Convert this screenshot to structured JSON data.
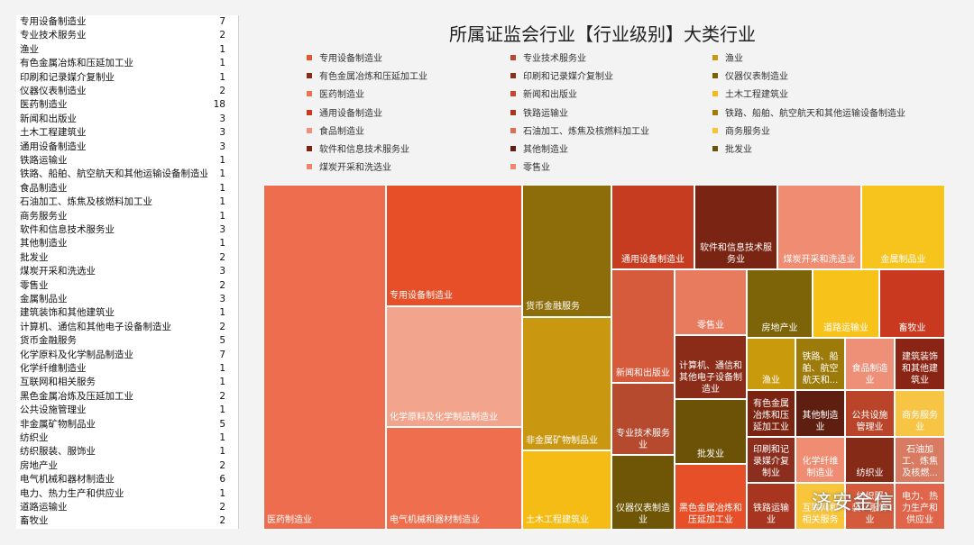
{
  "table": [
    {
      "name": "专用设备制造业",
      "count": "7"
    },
    {
      "name": "专业技术服务业",
      "count": "2"
    },
    {
      "name": "渔业",
      "count": "1"
    },
    {
      "name": "有色金属冶炼和压延加工业",
      "count": "1"
    },
    {
      "name": "印刷和记录媒介复制业",
      "count": "1"
    },
    {
      "name": "仪器仪表制造业",
      "count": "2"
    },
    {
      "name": "医药制造业",
      "count": "18"
    },
    {
      "name": "新闻和出版业",
      "count": "3"
    },
    {
      "name": "土木工程建筑业",
      "count": "3"
    },
    {
      "name": "通用设备制造业",
      "count": "3"
    },
    {
      "name": "铁路运输业",
      "count": "1"
    },
    {
      "name": "铁路、船舶、航空航天和其他运输设备制造业",
      "count": "1"
    },
    {
      "name": "食品制造业",
      "count": "1"
    },
    {
      "name": "石油加工、炼焦及核燃料加工业",
      "count": "1"
    },
    {
      "name": "商务服务业",
      "count": "1"
    },
    {
      "name": "软件和信息技术服务业",
      "count": "3"
    },
    {
      "name": "其他制造业",
      "count": "1"
    },
    {
      "name": "批发业",
      "count": "2"
    },
    {
      "name": "煤炭开采和洗选业",
      "count": "3"
    },
    {
      "name": "零售业",
      "count": "2"
    },
    {
      "name": "金属制品业",
      "count": "3"
    },
    {
      "name": "建筑装饰和其他建筑业",
      "count": "1"
    },
    {
      "name": "计算机、通信和其他电子设备制造业",
      "count": "2"
    },
    {
      "name": "货币金融服务",
      "count": "5"
    },
    {
      "name": "化学原料及化学制品制造业",
      "count": "7"
    },
    {
      "name": "化学纤维制造业",
      "count": "1"
    },
    {
      "name": "互联网和相关服务",
      "count": "1"
    },
    {
      "name": "黑色金属冶炼及压延加工业",
      "count": "2"
    },
    {
      "name": "公共设施管理业",
      "count": "1"
    },
    {
      "name": "非金属矿物制品业",
      "count": "5"
    },
    {
      "name": "纺织业",
      "count": "1"
    },
    {
      "name": "纺织服装、服饰业",
      "count": "1"
    },
    {
      "name": "房地产业",
      "count": "2"
    },
    {
      "name": "电气机械和器材制造业",
      "count": "6"
    },
    {
      "name": "电力、热力生产和供应业",
      "count": "1"
    },
    {
      "name": "道路运输业",
      "count": "2"
    },
    {
      "name": "畜牧业",
      "count": "2"
    }
  ],
  "watermark": "济安金信",
  "chart_data": {
    "type": "treemap",
    "title": "所属证监会行业【行业级别】大类行业",
    "legend": [
      {
        "name": "专用设备制造业",
        "color": "#e8542e"
      },
      {
        "name": "专业技术服务业",
        "color": "#b8482e"
      },
      {
        "name": "渔业",
        "color": "#c99a0c"
      },
      {
        "name": "有色金属冶炼和压延加工业",
        "color": "#8b2a1a"
      },
      {
        "name": "印刷和记录媒介复制业",
        "color": "#8c2e1e"
      },
      {
        "name": "仪器仪表制造业",
        "color": "#7a6204"
      },
      {
        "name": "医药制造业",
        "color": "#ee7152"
      },
      {
        "name": "新闻和出版业",
        "color": "#c9462e"
      },
      {
        "name": "土木工程建筑业",
        "color": "#f2b81c"
      },
      {
        "name": "通用设备制造业",
        "color": "#c8391f"
      },
      {
        "name": "铁路运输业",
        "color": "#a73520"
      },
      {
        "name": "铁路、船舶、航空航天和其他运输设备制造业",
        "color": "#a07c0a"
      },
      {
        "name": "食品制造业",
        "color": "#f0917c"
      },
      {
        "name": "石油加工、炼焦及核燃料加工业",
        "color": "#d86f58"
      },
      {
        "name": "商务服务业",
        "color": "#f9c13c"
      },
      {
        "name": "软件和信息技术服务业",
        "color": "#7e2210"
      },
      {
        "name": "其他制造业",
        "color": "#5e1f12"
      },
      {
        "name": "批发业",
        "color": "#6a5308"
      },
      {
        "name": "煤炭开采和洗选业",
        "color": "#ef8468"
      },
      {
        "name": "零售业",
        "color": "#ec8a6a"
      }
    ],
    "cells": [
      {
        "name": "医药制造业",
        "value": 18,
        "color": "#ef6d4f"
      },
      {
        "name": "专用设备制造业",
        "value": 7,
        "color": "#e64f28"
      },
      {
        "name": "化学原料及化学制品制造业",
        "value": 7,
        "color": "#f2a58c"
      },
      {
        "name": "电气机械和器材制造业",
        "value": 6,
        "color": "#ee6e4e"
      },
      {
        "name": "货币金融服务",
        "value": 5,
        "color": "#8d6c0a"
      },
      {
        "name": "非金属矿物制品业",
        "value": 5,
        "color": "#c99810"
      },
      {
        "name": "土木工程建筑业",
        "value": 3,
        "color": "#f4bc14"
      },
      {
        "name": "通用设备制造业",
        "value": 3,
        "color": "#c63c20"
      },
      {
        "name": "软件和信息技术服务业",
        "value": 3,
        "color": "#7a2413"
      },
      {
        "name": "煤炭开采和洗选业",
        "value": 3,
        "color": "#ef8c72"
      },
      {
        "name": "金属制品业",
        "value": 3,
        "color": "#f6c41c"
      },
      {
        "name": "新闻和出版业",
        "value": 3,
        "color": "#d65a3c"
      },
      {
        "name": "专业技术服务业",
        "value": 2,
        "color": "#b54a2e"
      },
      {
        "name": "仪器仪表制造业",
        "value": 2,
        "color": "#6e5606"
      },
      {
        "name": "零售业",
        "value": 2,
        "color": "#e87a5e"
      },
      {
        "name": "计算机、通信和其他电子设备制造业",
        "value": 2,
        "color": "#8b2c18"
      },
      {
        "name": "批发业",
        "value": 2,
        "color": "#6b5207"
      },
      {
        "name": "黑色金属冶炼和压延加工业",
        "value": 2,
        "color": "#e64f28"
      },
      {
        "name": "房地产业",
        "value": 2,
        "color": "#7d6408"
      },
      {
        "name": "道路运输业",
        "value": 2,
        "color": "#f7c21a"
      },
      {
        "name": "畜牧业",
        "value": 2,
        "color": "#c8391f"
      },
      {
        "name": "渔业",
        "value": 1,
        "color": "#c99a0c"
      },
      {
        "name": "铁路、船舶、航空航天和...",
        "value": 1,
        "color": "#9c7b0a"
      },
      {
        "name": "食品制造业",
        "value": 1,
        "color": "#ee8f78"
      },
      {
        "name": "建筑装饰和其他建筑业",
        "value": 1,
        "color": "#8a2414"
      },
      {
        "name": "有色金属冶炼和压延加工业",
        "value": 1,
        "color": "#7c2412"
      },
      {
        "name": "其他制造业",
        "value": 1,
        "color": "#5e1e10"
      },
      {
        "name": "公共设施管理业",
        "value": 1,
        "color": "#b9442a"
      },
      {
        "name": "商务服务业",
        "value": 1,
        "color": "#f7c444"
      },
      {
        "name": "印刷和记录媒介复制业",
        "value": 1,
        "color": "#8c2e1e"
      },
      {
        "name": "化学纤维制造业",
        "value": 1,
        "color": "#ef8c72"
      },
      {
        "name": "纺织业",
        "value": 1,
        "color": "#862a18"
      },
      {
        "name": "石油加工、炼焦及核燃...",
        "value": 1,
        "color": "#d97b62"
      },
      {
        "name": "铁路运输业",
        "value": 1,
        "color": "#a73520"
      },
      {
        "name": "互联网和相关服务",
        "value": 1,
        "color": "#f9c53a"
      },
      {
        "name": "纺织服装、服饰业",
        "value": 1,
        "color": "#d35a3a"
      },
      {
        "name": "电力、热力生产和供应业",
        "value": 1,
        "color": "#e0654a"
      }
    ]
  }
}
